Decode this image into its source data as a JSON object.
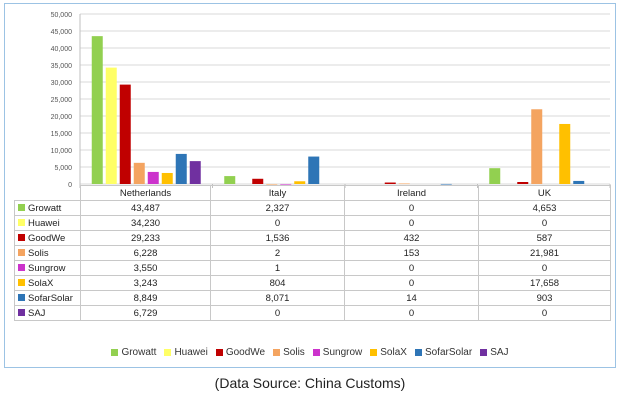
{
  "chart_data": {
    "type": "bar",
    "categories": [
      "Netherlands",
      "Italy",
      "Ireland",
      "UK"
    ],
    "series": [
      {
        "name": "Growatt",
        "color": "#92d050",
        "values": [
          43487,
          2327,
          0,
          4653
        ],
        "labels": [
          "43,487",
          "2,327",
          "0",
          "4,653"
        ]
      },
      {
        "name": "Huawei",
        "color": "#ffff66",
        "values": [
          34230,
          0,
          0,
          0
        ],
        "labels": [
          "34,230",
          "0",
          "0",
          "0"
        ]
      },
      {
        "name": "GoodWe",
        "color": "#c00000",
        "values": [
          29233,
          1536,
          432,
          587
        ],
        "labels": [
          "29,233",
          "1,536",
          "432",
          "587"
        ]
      },
      {
        "name": "Solis",
        "color": "#f4a460",
        "values": [
          6228,
          2,
          153,
          21981
        ],
        "labels": [
          "6,228",
          "2",
          "153",
          "21,981"
        ]
      },
      {
        "name": "Sungrow",
        "color": "#cc33cc",
        "values": [
          3550,
          1,
          0,
          0
        ],
        "labels": [
          "3,550",
          "1",
          "0",
          "0"
        ]
      },
      {
        "name": "SolaX",
        "color": "#ffc000",
        "values": [
          3243,
          804,
          0,
          17658
        ],
        "labels": [
          "3,243",
          "804",
          "0",
          "17,658"
        ]
      },
      {
        "name": "SofarSolar",
        "color": "#2e75b6",
        "values": [
          8849,
          8071,
          14,
          903
        ],
        "labels": [
          "8,849",
          "8,071",
          "14",
          "903"
        ]
      },
      {
        "name": "SAJ",
        "color": "#7030a0",
        "values": [
          6729,
          0,
          0,
          0
        ],
        "labels": [
          "6,729",
          "0",
          "0",
          "0"
        ]
      }
    ],
    "yticks": [
      "0",
      "5,000",
      "10,000",
      "15,000",
      "20,000",
      "25,000",
      "30,000",
      "35,000",
      "40,000",
      "45,000",
      "50,000"
    ],
    "ylim": [
      0,
      50000
    ],
    "grid": true,
    "legend_position": "bottom",
    "data_table": true
  },
  "source_note": "(Data Source: China Customs)"
}
